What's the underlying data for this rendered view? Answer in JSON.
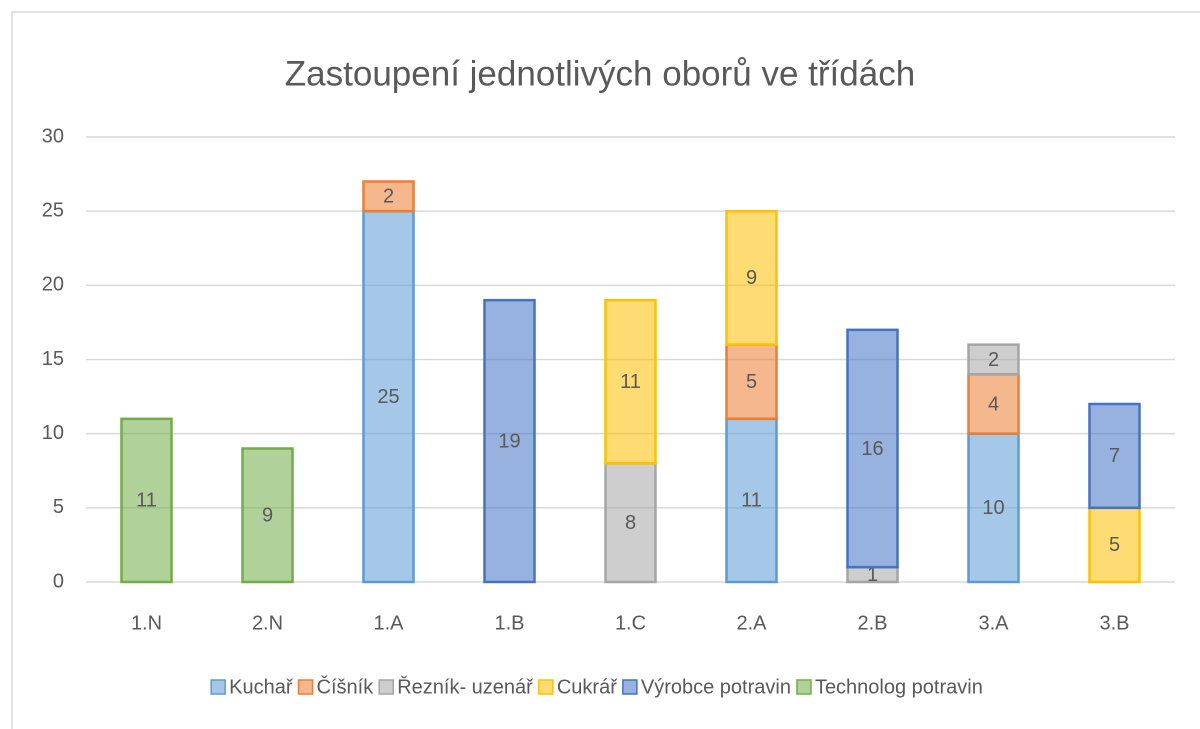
{
  "chart_data": {
    "type": "stacked_bar",
    "title": "Zastoupení jednotlivých oborů ve třídách",
    "categories": [
      "1.N",
      "2.N",
      "1.A",
      "1.B",
      "1.C",
      "2.A",
      "2.B",
      "3.A",
      "3.B"
    ],
    "series": [
      {
        "name": "Kuchař",
        "color": "#5b9bd5",
        "values": [
          null,
          null,
          25,
          null,
          null,
          11,
          null,
          10,
          null
        ]
      },
      {
        "name": "Číšník",
        "color": "#ed7d31",
        "values": [
          null,
          null,
          2,
          null,
          null,
          5,
          null,
          4,
          null
        ]
      },
      {
        "name": "Řezník- uzenář",
        "color": "#a5a5a5",
        "values": [
          null,
          null,
          null,
          null,
          8,
          null,
          1,
          2,
          null
        ]
      },
      {
        "name": "Cukrář",
        "color": "#ffc000",
        "values": [
          null,
          null,
          null,
          null,
          11,
          9,
          null,
          null,
          5
        ]
      },
      {
        "name": "Výrobce potravin",
        "color": "#4472c4",
        "values": [
          null,
          null,
          null,
          19,
          null,
          null,
          16,
          null,
          7
        ]
      },
      {
        "name": "Technolog potravin",
        "color": "#70ad47",
        "values": [
          11,
          9,
          null,
          null,
          null,
          null,
          null,
          null,
          null
        ]
      }
    ],
    "ylim": [
      0,
      30
    ],
    "yticks": [
      0,
      5,
      10,
      15,
      20,
      25,
      30
    ],
    "grid": true,
    "legend": "bottom"
  }
}
